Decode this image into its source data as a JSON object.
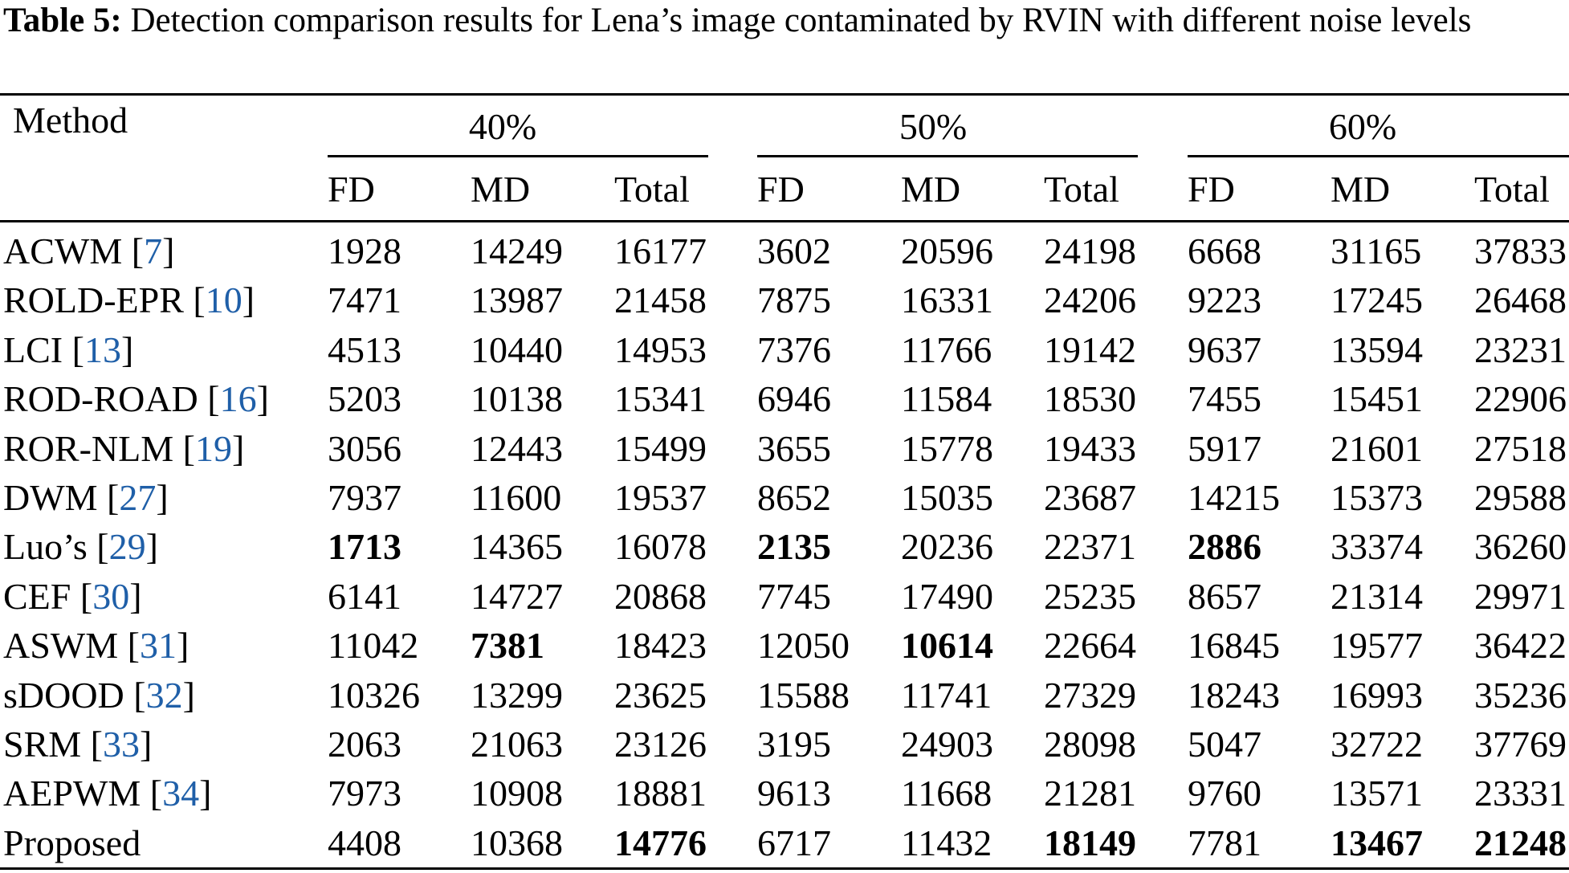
{
  "caption": {
    "label": "Table 5:",
    "text": " Detection comparison results for Lena’s image contaminated by RVIN with different noise levels"
  },
  "header": {
    "method": "Method",
    "groups": [
      "40%",
      "50%",
      "60%"
    ],
    "subcols": [
      "FD",
      "MD",
      "Total"
    ]
  },
  "rows": [
    {
      "method": "ACWM",
      "ref": "7",
      "values": [
        "1928",
        "14249",
        "16177",
        "3602",
        "20596",
        "24198",
        "6668",
        "31165",
        "37833"
      ],
      "bold": []
    },
    {
      "method": "ROLD-EPR",
      "ref": "10",
      "values": [
        "7471",
        "13987",
        "21458",
        "7875",
        "16331",
        "24206",
        "9223",
        "17245",
        "26468"
      ],
      "bold": []
    },
    {
      "method": "LCI",
      "ref": "13",
      "values": [
        "4513",
        "10440",
        "14953",
        "7376",
        "11766",
        "19142",
        "9637",
        "13594",
        "23231"
      ],
      "bold": []
    },
    {
      "method": "ROD-ROAD",
      "ref": "16",
      "values": [
        "5203",
        "10138",
        "15341",
        "6946",
        "11584",
        "18530",
        "7455",
        "15451",
        "22906"
      ],
      "bold": []
    },
    {
      "method": "ROR-NLM",
      "ref": "19",
      "values": [
        "3056",
        "12443",
        "15499",
        "3655",
        "15778",
        "19433",
        "5917",
        "21601",
        "27518"
      ],
      "bold": []
    },
    {
      "method": "DWM",
      "ref": "27",
      "values": [
        "7937",
        "11600",
        "19537",
        "8652",
        "15035",
        "23687",
        "14215",
        "15373",
        "29588"
      ],
      "bold": []
    },
    {
      "method": "Luo’s",
      "ref": "29",
      "values": [
        "1713",
        "14365",
        "16078",
        "2135",
        "20236",
        "22371",
        "2886",
        "33374",
        "36260"
      ],
      "bold": [
        0,
        3,
        6
      ]
    },
    {
      "method": "CEF",
      "ref": "30",
      "values": [
        "6141",
        "14727",
        "20868",
        "7745",
        "17490",
        "25235",
        "8657",
        "21314",
        "29971"
      ],
      "bold": []
    },
    {
      "method": "ASWM",
      "ref": "31",
      "values": [
        "11042",
        "7381",
        "18423",
        "12050",
        "10614",
        "22664",
        "16845",
        "19577",
        "36422"
      ],
      "bold": [
        1,
        4
      ]
    },
    {
      "method": "sDOOD",
      "ref": "32",
      "values": [
        "10326",
        "13299",
        "23625",
        "15588",
        "11741",
        "27329",
        "18243",
        "16993",
        "35236"
      ],
      "bold": []
    },
    {
      "method": "SRM",
      "ref": "33",
      "values": [
        "2063",
        "21063",
        "23126",
        "3195",
        "24903",
        "28098",
        "5047",
        "32722",
        "37769"
      ],
      "bold": []
    },
    {
      "method": "AEPWM",
      "ref": "34",
      "values": [
        "7973",
        "10908",
        "18881",
        "9613",
        "11668",
        "21281",
        "9760",
        "13571",
        "23331"
      ],
      "bold": []
    },
    {
      "method": "Proposed",
      "ref": "",
      "values": [
        "4408",
        "10368",
        "14776",
        "6717",
        "11432",
        "18149",
        "7781",
        "13467",
        "21248"
      ],
      "bold": [
        2,
        5,
        7,
        8
      ]
    }
  ]
}
